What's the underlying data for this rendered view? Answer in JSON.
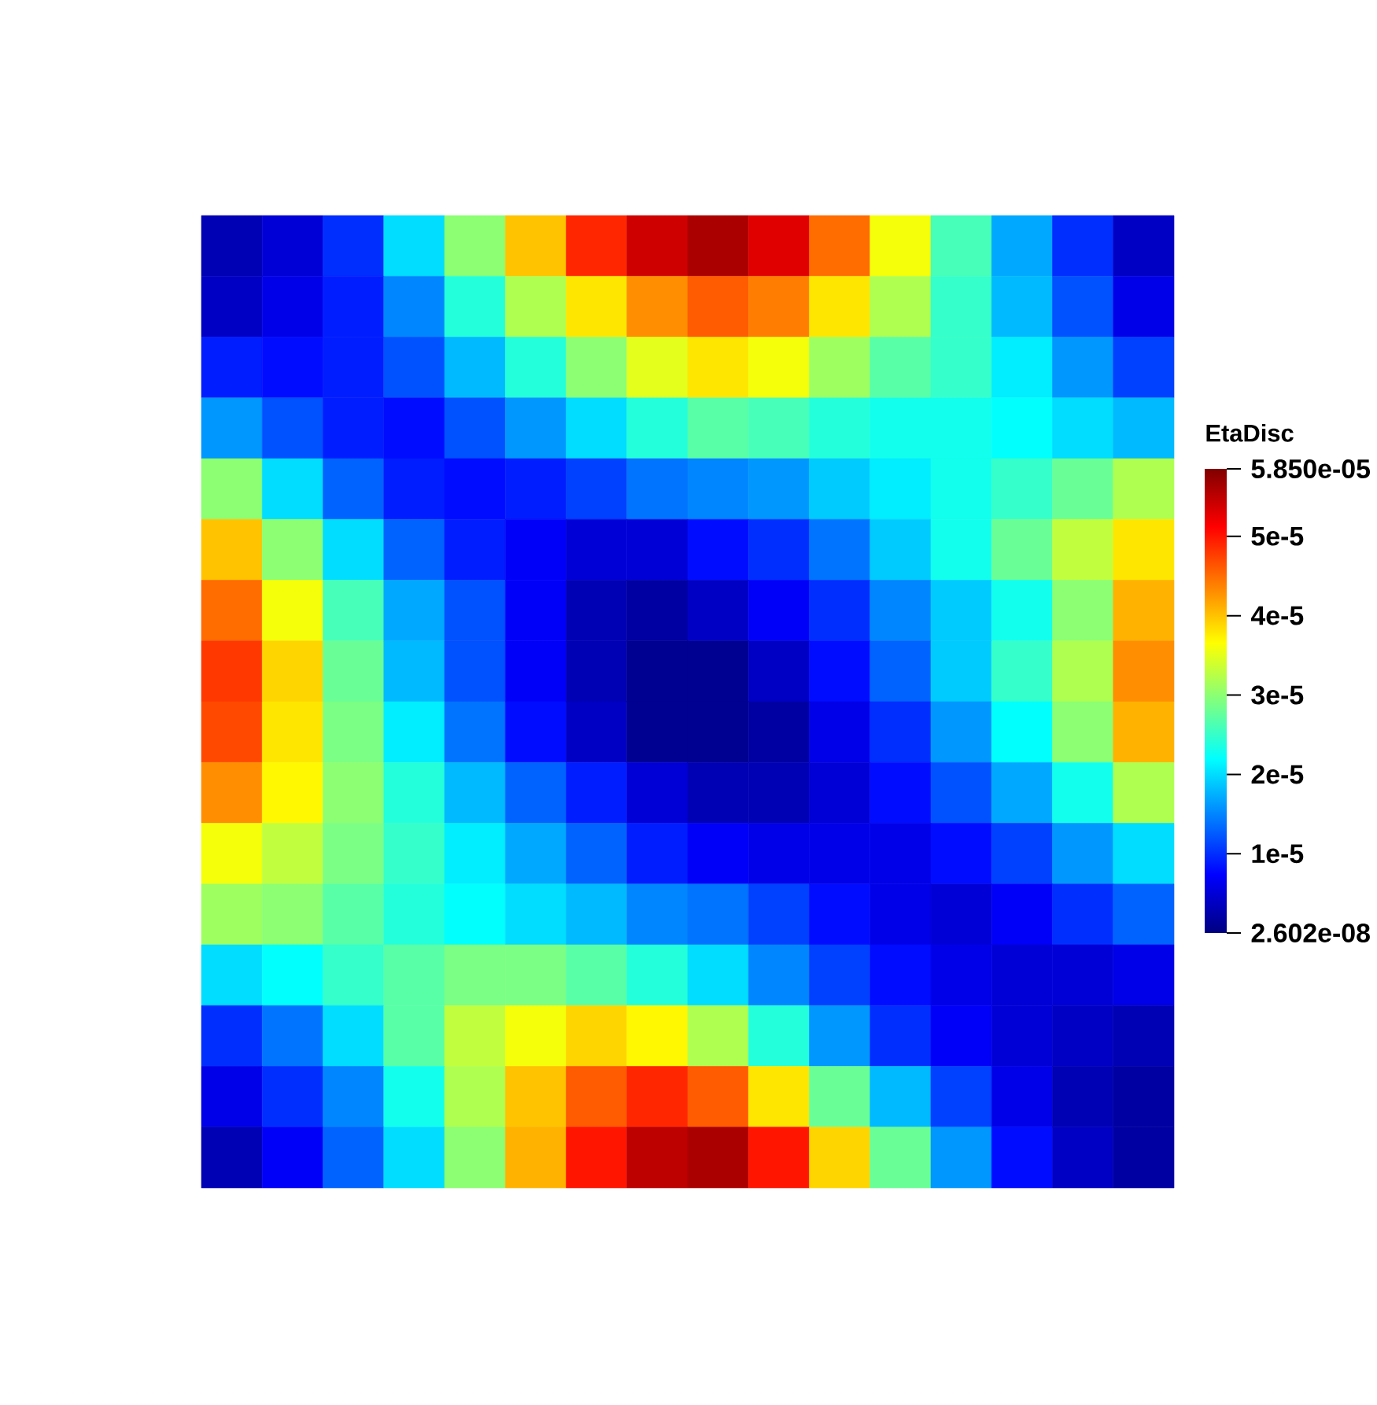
{
  "chart_data": {
    "type": "heatmap",
    "clabel": "EtaDisc",
    "categories": [
      null,
      null,
      null,
      null,
      null,
      null,
      null,
      null,
      null,
      null,
      null,
      null,
      null,
      null,
      null,
      null
    ],
    "y_categories": [
      null,
      null,
      null,
      null,
      null,
      null,
      null,
      null,
      null,
      null,
      null,
      null,
      null,
      null,
      null,
      null
    ],
    "tick_labels": false,
    "clim": [
      2.602e-08,
      5.85e-05
    ],
    "cticks": [
      {
        "value": 2.602e-08,
        "label": "2.602e-08"
      },
      {
        "value": 1e-05,
        "label": "1e-5"
      },
      {
        "value": 2e-05,
        "label": "2e-5"
      },
      {
        "value": 3e-05,
        "label": "3e-5"
      },
      {
        "value": 4e-05,
        "label": "4e-5"
      },
      {
        "value": 5e-05,
        "label": "5e-5"
      },
      {
        "value": 5.85e-05,
        "label": "5.850e-05"
      }
    ],
    "cells": [
      [
        3e-06,
        5e-06,
        1e-05,
        2e-05,
        3e-05,
        4e-05,
        4.9e-05,
        5.4e-05,
        5.6e-05,
        5.3e-05,
        4.5e-05,
        3.6e-05,
        2.6e-05,
        1.7e-05,
        1e-05,
        4e-06
      ],
      [
        4e-06,
        6e-06,
        9e-06,
        1.5e-05,
        2.4e-05,
        3.2e-05,
        3.8e-05,
        4.3e-05,
        4.6e-05,
        4.4e-05,
        3.8e-05,
        3.2e-05,
        2.5e-05,
        1.8e-05,
        1.2e-05,
        6e-06
      ],
      [
        9e-06,
        8e-06,
        9e-06,
        1.2e-05,
        1.8e-05,
        2.4e-05,
        3e-05,
        3.5e-05,
        3.8e-05,
        3.6e-05,
        3.1e-05,
        2.7e-05,
        2.5e-05,
        2.1e-05,
        1.6e-05,
        1.1e-05
      ],
      [
        1.6e-05,
        1.2e-05,
        9e-06,
        8e-06,
        1.2e-05,
        1.6e-05,
        2e-05,
        2.4e-05,
        2.7e-05,
        2.6e-05,
        2.4e-05,
        2.3e-05,
        2.3e-05,
        2.2e-05,
        2e-05,
        1.8e-05
      ],
      [
        3e-05,
        2e-05,
        1.3e-05,
        9e-06,
        8e-06,
        9e-06,
        1.1e-05,
        1.4e-05,
        1.5e-05,
        1.6e-05,
        1.9e-05,
        2.1e-05,
        2.3e-05,
        2.5e-05,
        2.8e-05,
        3.2e-05
      ],
      [
        4e-05,
        3e-05,
        2e-05,
        1.3e-05,
        9e-06,
        7e-06,
        5e-06,
        5e-06,
        8e-06,
        1e-05,
        1.4e-05,
        1.9e-05,
        2.3e-05,
        2.8e-05,
        3.3e-05,
        3.8e-05
      ],
      [
        4.5e-05,
        3.6e-05,
        2.6e-05,
        1.7e-05,
        1.2e-05,
        7e-06,
        3e-06,
        2e-06,
        4e-06,
        7e-06,
        1e-05,
        1.5e-05,
        1.9e-05,
        2.3e-05,
        3e-05,
        4.1e-05
      ],
      [
        4.8e-05,
        3.9e-05,
        2.8e-05,
        1.8e-05,
        1.2e-05,
        7e-06,
        3e-06,
        1e-06,
        1e-06,
        4e-06,
        8e-06,
        1.3e-05,
        1.9e-05,
        2.5e-05,
        3.2e-05,
        4.3e-05
      ],
      [
        4.7e-05,
        3.8e-05,
        2.9e-05,
        2.1e-05,
        1.4e-05,
        8e-06,
        4e-06,
        1e-06,
        1e-06,
        2e-06,
        6e-06,
        1e-05,
        1.6e-05,
        2.2e-05,
        3e-05,
        4.1e-05
      ],
      [
        4.3e-05,
        3.7e-05,
        3e-05,
        2.4e-05,
        1.8e-05,
        1.3e-05,
        9e-06,
        5e-06,
        3e-06,
        3e-06,
        5e-06,
        8e-06,
        1.2e-05,
        1.7e-05,
        2.3e-05,
        3.2e-05
      ],
      [
        3.6e-05,
        3.3e-05,
        2.9e-05,
        2.5e-05,
        2.1e-05,
        1.7e-05,
        1.3e-05,
        9e-06,
        7e-06,
        6e-06,
        6e-06,
        6e-06,
        8e-06,
        1.1e-05,
        1.6e-05,
        2e-05
      ],
      [
        3.1e-05,
        3e-05,
        2.7e-05,
        2.4e-05,
        2.2e-05,
        2e-05,
        1.8e-05,
        1.5e-05,
        1.4e-05,
        1.1e-05,
        8e-06,
        6e-06,
        5e-06,
        7e-06,
        1e-05,
        1.3e-05
      ],
      [
        2e-05,
        2.2e-05,
        2.5e-05,
        2.7e-05,
        2.9e-05,
        2.9e-05,
        2.7e-05,
        2.4e-05,
        2e-05,
        1.5e-05,
        1.1e-05,
        8e-06,
        6e-06,
        5e-06,
        5e-06,
        6e-06
      ],
      [
        1e-05,
        1.4e-05,
        2e-05,
        2.7e-05,
        3.3e-05,
        3.6e-05,
        3.9e-05,
        3.7e-05,
        3.2e-05,
        2.4e-05,
        1.6e-05,
        1e-05,
        7e-06,
        5e-06,
        4e-06,
        3e-06
      ],
      [
        6e-06,
        1e-05,
        1.5e-05,
        2.3e-05,
        3.2e-05,
        4e-05,
        4.6e-05,
        4.9e-05,
        4.6e-05,
        3.8e-05,
        2.8e-05,
        1.8e-05,
        1.1e-05,
        6e-06,
        3e-06,
        2e-06
      ],
      [
        3e-06,
        7e-06,
        1.3e-05,
        2e-05,
        3e-05,
        4.1e-05,
        5e-05,
        5.5e-05,
        5.6e-05,
        5e-05,
        3.9e-05,
        2.8e-05,
        1.6e-05,
        8e-06,
        4e-06,
        2e-06
      ]
    ]
  }
}
